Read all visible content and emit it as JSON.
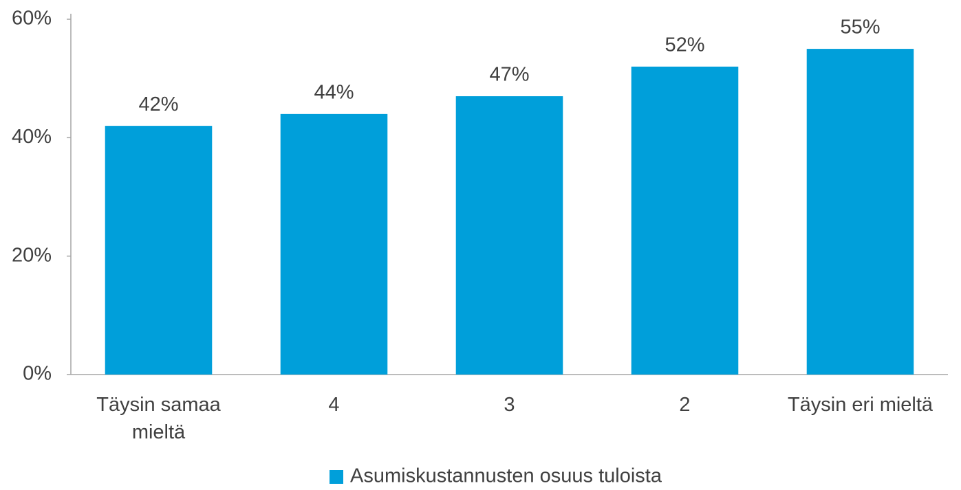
{
  "chart_data": {
    "type": "bar",
    "categories": [
      "Täysin samaa mieltä",
      "4",
      "3",
      "2",
      "Täysin eri mieltä"
    ],
    "series": [
      {
        "name": "Asumiskustannusten osuus tuloista",
        "color": "#009fda",
        "values": [
          42,
          44,
          47,
          52,
          55
        ],
        "value_labels": [
          "42%",
          "44%",
          "47%",
          "52%",
          "55%"
        ]
      }
    ],
    "ylim": [
      0,
      60
    ],
    "yticks": [
      {
        "value": 0,
        "label": "0%"
      },
      {
        "value": 20,
        "label": "20%"
      },
      {
        "value": 40,
        "label": "40%"
      },
      {
        "value": 60,
        "label": "60%"
      }
    ],
    "grid": false,
    "legend": "bottom"
  }
}
